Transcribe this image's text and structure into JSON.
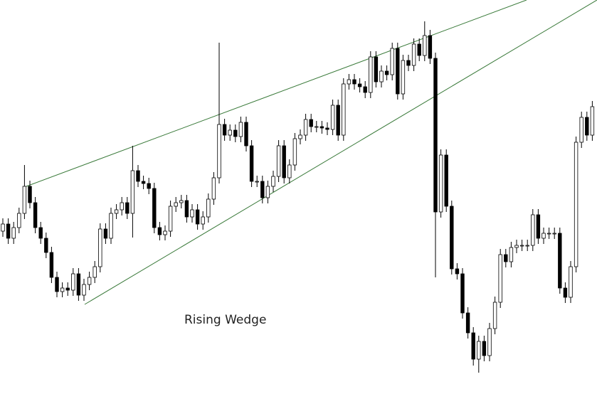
{
  "chart_data": {
    "type": "candlestick",
    "title": "Rising Wedge",
    "up_color": "#ffffff",
    "down_color": "#000000",
    "wick_color": "#000000",
    "ylim": [
      0,
      554
    ],
    "open": [
      229,
      239,
      219,
      234,
      254,
      292,
      269,
      234,
      219,
      199,
      164,
      144,
      149,
      146,
      169,
      139,
      154,
      164,
      179,
      232,
      219,
      254,
      259,
      269,
      254,
      314,
      299,
      296,
      289,
      234,
      224,
      229,
      264,
      269,
      272,
      249,
      259,
      239,
      249,
      274,
      304,
      379,
      364,
      371,
      362,
      382,
      349,
      299,
      299,
      276,
      292,
      306,
      349,
      304,
      322,
      359,
      364,
      386,
      376,
      376,
      374,
      372,
      406,
      364,
      436,
      442,
      436,
      432,
      424,
      474,
      439,
      454,
      449,
      486,
      422,
      469,
      462,
      492,
      476,
      504,
      472,
      256,
      336,
      264,
      176,
      169,
      114,
      86,
      49,
      74,
      54,
      92,
      129,
      196,
      186,
      206,
      209,
      209,
      209,
      252,
      219,
      226,
      226,
      226,
      149,
      136,
      179,
      354,
      389,
      364
    ],
    "high": [
      247,
      247,
      242,
      262,
      322,
      300,
      277,
      242,
      227,
      207,
      172,
      157,
      157,
      177,
      177,
      162,
      172,
      187,
      240,
      240,
      262,
      267,
      277,
      277,
      349,
      322,
      307,
      304,
      297,
      242,
      237,
      272,
      277,
      280,
      280,
      267,
      267,
      257,
      282,
      312,
      494,
      387,
      379,
      379,
      390,
      390,
      357,
      307,
      307,
      300,
      314,
      357,
      357,
      330,
      367,
      372,
      394,
      394,
      384,
      384,
      382,
      414,
      414,
      444,
      450,
      450,
      444,
      440,
      482,
      482,
      462,
      462,
      494,
      494,
      477,
      477,
      500,
      500,
      524,
      512,
      480,
      344,
      344,
      272,
      184,
      177,
      122,
      94,
      82,
      82,
      100,
      137,
      204,
      204,
      214,
      217,
      217,
      217,
      260,
      260,
      234,
      234,
      234,
      234,
      157,
      187,
      362,
      397,
      397,
      412
    ],
    "low": [
      221,
      211,
      211,
      226,
      246,
      261,
      226,
      211,
      191,
      156,
      136,
      136,
      138,
      138,
      131,
      131,
      146,
      156,
      171,
      211,
      211,
      246,
      251,
      246,
      220,
      291,
      288,
      281,
      226,
      216,
      216,
      221,
      256,
      261,
      241,
      241,
      231,
      231,
      241,
      266,
      296,
      356,
      356,
      354,
      354,
      341,
      291,
      291,
      268,
      268,
      284,
      298,
      296,
      296,
      314,
      351,
      356,
      368,
      368,
      366,
      364,
      364,
      356,
      356,
      428,
      428,
      424,
      416,
      416,
      431,
      431,
      441,
      441,
      414,
      414,
      454,
      454,
      468,
      468,
      464,
      164,
      248,
      256,
      168,
      161,
      106,
      78,
      40,
      30,
      46,
      46,
      84,
      121,
      178,
      178,
      198,
      201,
      201,
      201,
      211,
      211,
      218,
      218,
      141,
      128,
      128,
      171,
      346,
      356,
      356
    ],
    "close": [
      239,
      219,
      234,
      254,
      292,
      269,
      234,
      219,
      199,
      164,
      144,
      149,
      146,
      169,
      139,
      154,
      164,
      179,
      232,
      219,
      254,
      259,
      269,
      254,
      314,
      299,
      296,
      289,
      234,
      224,
      229,
      264,
      269,
      272,
      249,
      259,
      239,
      249,
      274,
      304,
      379,
      364,
      371,
      362,
      382,
      349,
      299,
      299,
      276,
      292,
      306,
      349,
      304,
      322,
      359,
      364,
      386,
      376,
      376,
      374,
      372,
      406,
      364,
      436,
      442,
      436,
      432,
      424,
      474,
      439,
      454,
      449,
      486,
      422,
      469,
      462,
      492,
      476,
      504,
      472,
      256,
      336,
      264,
      176,
      169,
      114,
      86,
      49,
      74,
      54,
      92,
      129,
      196,
      186,
      206,
      209,
      209,
      209,
      252,
      219,
      226,
      226,
      226,
      149,
      136,
      179,
      354,
      389,
      364,
      404
    ]
  }
}
